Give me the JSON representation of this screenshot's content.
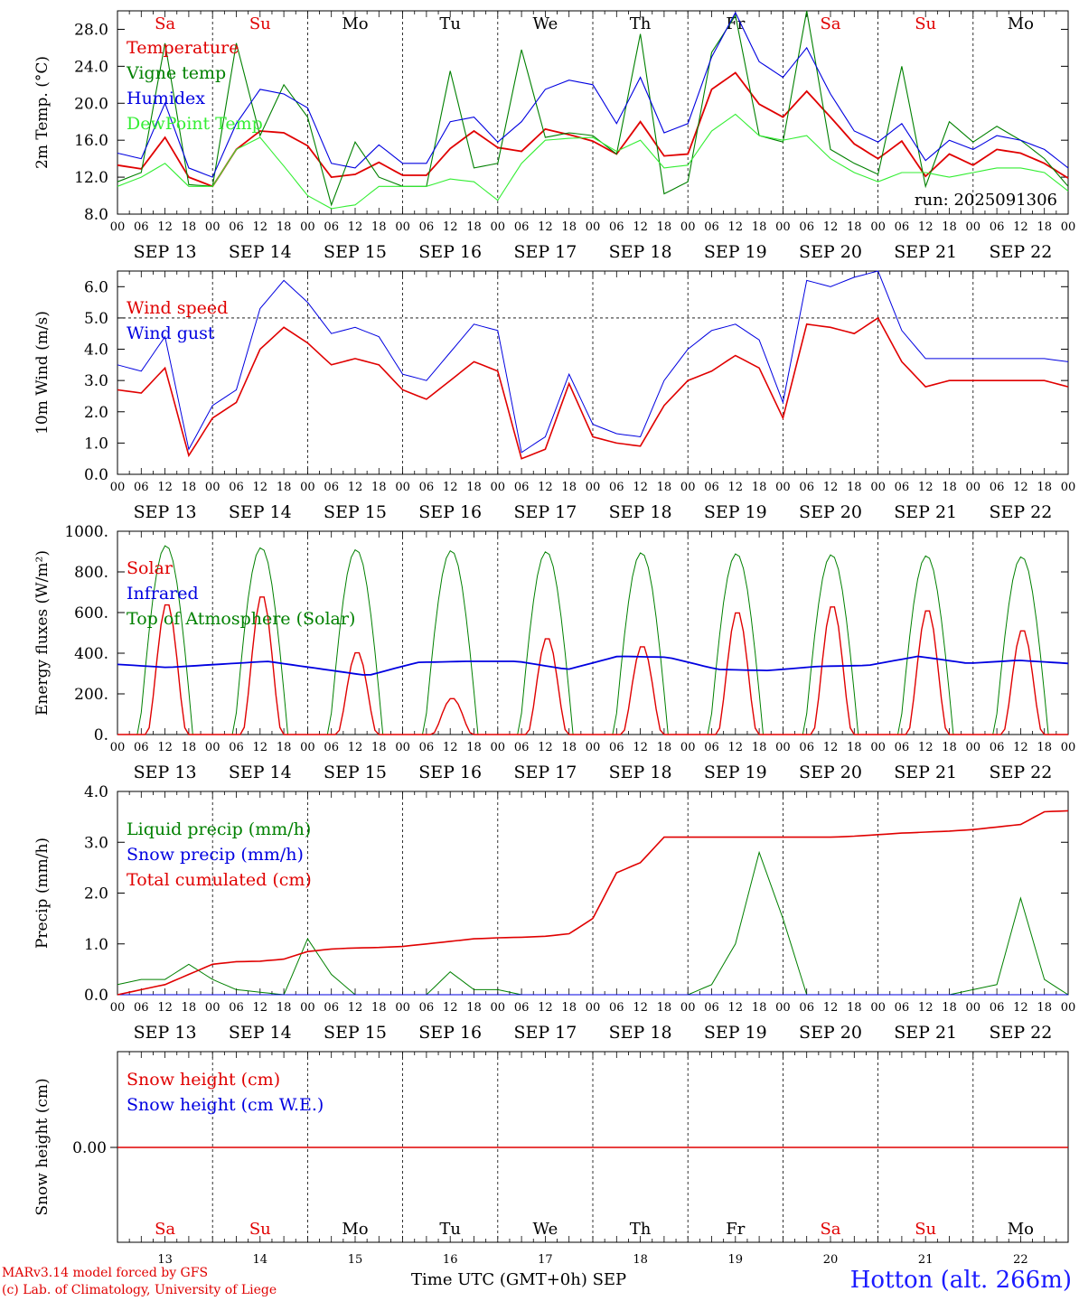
{
  "days": [
    "SEP 13",
    "SEP 14",
    "SEP 15",
    "SEP 16",
    "SEP 17",
    "SEP 18",
    "SEP 19",
    "SEP 20",
    "SEP 21",
    "SEP 22"
  ],
  "day_numbers": [
    "13",
    "14",
    "15",
    "16",
    "17",
    "18",
    "19",
    "20",
    "21",
    "22"
  ],
  "weekdays": [
    "Sa",
    "Su",
    "Mo",
    "Tu",
    "We",
    "Th",
    "Fr",
    "Sa",
    "Su",
    "Mo"
  ],
  "weekday_colors": [
    "#e00000",
    "#e00000",
    "#000000",
    "#000000",
    "#000000",
    "#000000",
    "#000000",
    "#e00000",
    "#e00000",
    "#000000"
  ],
  "hour_ticks": [
    "00",
    "06",
    "12",
    "18"
  ],
  "footer": {
    "credit_line1": "MARv3.14 model forced by GFS",
    "credit_line2": "(c) Lab. of Climatology, University of Liege",
    "x_title": "Time UTC (GMT+0h) SEP",
    "station": "Hotton (alt. 266m)"
  },
  "chart_data": [
    {
      "type": "line",
      "ylabel": "2m Temp. (°C)",
      "ylim": [
        8,
        30
      ],
      "yticks": [
        "8.0",
        "12.0",
        "16.0",
        "20.0",
        "24.0",
        "28.0"
      ],
      "annotation": "run: 2025091306",
      "x": [
        0,
        6,
        12,
        18,
        24,
        30,
        36,
        42,
        48,
        54,
        60,
        66,
        72,
        78,
        84,
        90,
        96,
        102,
        108,
        114,
        120,
        126,
        132,
        138,
        144,
        150,
        156,
        162,
        168,
        174,
        180,
        186,
        192,
        198,
        204,
        210,
        216,
        222,
        228,
        234,
        240
      ],
      "series": [
        {
          "name": "Temperature",
          "color": "#e00000",
          "values": [
            13.3,
            12.9,
            16.3,
            12.0,
            11.0,
            15.0,
            17.0,
            16.8,
            15.4,
            12.0,
            12.3,
            13.6,
            12.2,
            12.2,
            15.1,
            17.0,
            15.2,
            14.8,
            17.2,
            16.6,
            15.9,
            14.5,
            18.0,
            14.3,
            14.5,
            21.5,
            23.3,
            19.9,
            18.5,
            21.3,
            18.5,
            15.6,
            14.0,
            15.9,
            12.1,
            14.5,
            13.3,
            15.0,
            14.6,
            13.5,
            11.9
          ]
        },
        {
          "name": "Vigne temp",
          "color": "#008000",
          "values": [
            11.5,
            12.5,
            26.5,
            11.2,
            11.0,
            26.5,
            16.5,
            22.0,
            18.5,
            9.0,
            15.8,
            12.0,
            11.0,
            11.0,
            23.5,
            13.0,
            13.5,
            25.8,
            16.3,
            16.8,
            16.5,
            14.5,
            27.5,
            10.2,
            11.5,
            25.5,
            29.5,
            16.5,
            15.8,
            30.0,
            15.0,
            13.5,
            12.3,
            24.0,
            11.0,
            18.0,
            15.8,
            17.5,
            16.0,
            14.0,
            11.0
          ]
        },
        {
          "name": "Humidex",
          "color": "#0000e0",
          "values": [
            14.6,
            14.0,
            20.0,
            13.0,
            12.0,
            17.8,
            21.5,
            21.0,
            19.5,
            13.5,
            13.0,
            15.5,
            13.5,
            13.5,
            18.0,
            18.5,
            15.8,
            18.0,
            21.5,
            22.5,
            22.0,
            17.8,
            22.8,
            16.8,
            17.8,
            25.0,
            29.8,
            24.5,
            22.8,
            26.0,
            21.0,
            17.0,
            15.8,
            17.8,
            13.8,
            16.0,
            15.0,
            16.5,
            16.0,
            15.0,
            13.0
          ]
        },
        {
          "name": "DewPoint Temp",
          "color": "#33ee33",
          "values": [
            11.0,
            12.0,
            13.5,
            11.0,
            11.0,
            15.0,
            16.3,
            13.2,
            10.0,
            8.6,
            9.0,
            11.0,
            11.0,
            11.0,
            11.8,
            11.5,
            9.5,
            13.5,
            16.0,
            16.2,
            16.3,
            14.8,
            16.0,
            13.0,
            13.3,
            17.0,
            18.8,
            16.5,
            16.0,
            16.5,
            14.0,
            12.5,
            11.5,
            12.5,
            12.5,
            12.0,
            12.5,
            13.0,
            13.0,
            12.5,
            10.5
          ]
        }
      ]
    },
    {
      "type": "line",
      "ylabel": "10m Wind (m/s)",
      "ylim": [
        0,
        6.5
      ],
      "yticks": [
        "0.0",
        "1.0",
        "2.0",
        "3.0",
        "4.0",
        "5.0",
        "6.0"
      ],
      "x": [
        0,
        6,
        12,
        18,
        24,
        30,
        36,
        42,
        48,
        54,
        60,
        66,
        72,
        78,
        84,
        90,
        96,
        102,
        108,
        114,
        120,
        126,
        132,
        138,
        144,
        150,
        156,
        162,
        168,
        174,
        180,
        186,
        192,
        198,
        204,
        210,
        216,
        222,
        228,
        234,
        240
      ],
      "series": [
        {
          "name": "Wind speed",
          "color": "#e00000",
          "values": [
            2.7,
            2.6,
            3.4,
            0.6,
            1.8,
            2.3,
            4.0,
            4.7,
            4.2,
            3.5,
            3.7,
            3.5,
            2.7,
            2.4,
            3.0,
            3.6,
            3.3,
            0.5,
            0.8,
            2.9,
            1.2,
            1.0,
            0.9,
            2.2,
            3.0,
            3.3,
            3.8,
            3.4,
            1.8,
            4.8,
            4.7,
            4.5,
            5.0,
            3.6,
            2.8,
            3.0,
            3.0,
            3.0,
            3.0,
            3.0,
            2.8
          ]
        },
        {
          "name": "Wind gust",
          "color": "#0000e0",
          "values": [
            3.5,
            3.3,
            4.4,
            0.8,
            2.2,
            2.7,
            5.3,
            6.2,
            5.5,
            4.5,
            4.7,
            4.4,
            3.2,
            3.0,
            3.9,
            4.8,
            4.6,
            0.7,
            1.2,
            3.2,
            1.6,
            1.3,
            1.2,
            3.0,
            4.0,
            4.6,
            4.8,
            4.3,
            2.3,
            6.2,
            6.0,
            6.3,
            6.5,
            4.6,
            3.7,
            3.7,
            3.7,
            3.7,
            3.7,
            3.7,
            3.6
          ]
        }
      ]
    },
    {
      "type": "line",
      "ylabel": "Energy fluxes (W/m²)",
      "ylim": [
        0,
        1000
      ],
      "yticks": [
        "0.",
        "200.",
        "400.",
        "600.",
        "800.",
        "1000."
      ],
      "daily_peaks": {
        "Top of Atmosphere (Solar)": [
          930,
          920,
          910,
          905,
          900,
          895,
          890,
          885,
          880,
          875
        ],
        "Solar": [
          650,
          690,
          410,
          180,
          480,
          440,
          610,
          640,
          620,
          520
        ]
      },
      "series": [
        {
          "name": "Solar",
          "color": "#e00000"
        },
        {
          "name": "Infrared",
          "color": "#0000e0",
          "values": [
            345,
            330,
            345,
            360,
            325,
            290,
            355,
            360,
            360,
            320,
            385,
            380,
            320,
            315,
            335,
            340,
            385,
            350,
            365,
            350
          ]
        },
        {
          "name": "Top of Atmosphere (Solar)",
          "color": "#008000"
        }
      ]
    },
    {
      "type": "line",
      "ylabel": "Precip (mm/h)",
      "ylim": [
        0,
        4.0
      ],
      "yticks": [
        "0.0",
        "1.0",
        "2.0",
        "3.0",
        "4.0"
      ],
      "x": [
        0,
        6,
        12,
        18,
        24,
        30,
        36,
        42,
        48,
        54,
        60,
        66,
        72,
        78,
        84,
        90,
        96,
        102,
        108,
        114,
        120,
        126,
        132,
        138,
        144,
        150,
        156,
        162,
        168,
        174,
        180,
        186,
        192,
        198,
        204,
        210,
        216,
        222,
        228,
        234,
        240
      ],
      "series": [
        {
          "name": "Liquid precip (mm/h)",
          "color": "#008000",
          "values": [
            0.2,
            0.3,
            0.3,
            0.6,
            0.3,
            0.1,
            0.05,
            0.0,
            1.1,
            0.4,
            0.0,
            0.0,
            0.0,
            0.0,
            0.45,
            0.1,
            0.1,
            0.0,
            0.0,
            0.0,
            0.0,
            0.0,
            0.0,
            0.0,
            0.0,
            0.2,
            1.0,
            2.8,
            1.5,
            0.0,
            0.0,
            0.0,
            0.0,
            0.0,
            0.0,
            0.0,
            0.1,
            0.2,
            1.9,
            0.3,
            0.0
          ]
        },
        {
          "name": "Snow precip (mm/h)",
          "color": "#0000e0",
          "values": [
            0,
            0,
            0,
            0,
            0,
            0,
            0,
            0,
            0,
            0,
            0,
            0,
            0,
            0,
            0,
            0,
            0,
            0,
            0,
            0,
            0,
            0,
            0,
            0,
            0,
            0,
            0,
            0,
            0,
            0,
            0,
            0,
            0,
            0,
            0,
            0,
            0,
            0,
            0,
            0,
            0
          ]
        },
        {
          "name": "Total cumulated (cm)",
          "color": "#e00000",
          "values": [
            0.0,
            0.1,
            0.2,
            0.4,
            0.6,
            0.65,
            0.66,
            0.7,
            0.85,
            0.9,
            0.92,
            0.93,
            0.95,
            1.0,
            1.05,
            1.1,
            1.12,
            1.13,
            1.15,
            1.2,
            1.5,
            2.4,
            2.6,
            3.1,
            3.1,
            3.1,
            3.1,
            3.1,
            3.1,
            3.1,
            3.1,
            3.12,
            3.15,
            3.18,
            3.2,
            3.22,
            3.25,
            3.3,
            3.35,
            3.6,
            3.62
          ]
        }
      ]
    },
    {
      "type": "line",
      "ylabel": "Snow height (cm)",
      "yticks": [
        "0.00"
      ],
      "series": [
        {
          "name": "Snow height (cm)",
          "color": "#e00000",
          "values": [
            0,
            0
          ]
        },
        {
          "name": "Snow height (cm W.E.)",
          "color": "#0000e0",
          "values": [
            0,
            0
          ]
        }
      ]
    }
  ]
}
